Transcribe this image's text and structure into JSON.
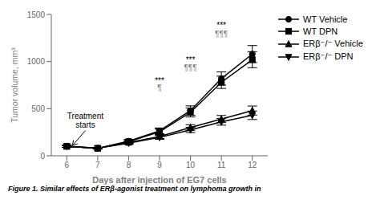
{
  "chart_data": {
    "type": "line",
    "xlabel": "Days after injection of EG7 cells",
    "ylabel": "Tumor volume, mm³",
    "caption": "Figure 1. Similar effects of ERβ-agonist treatment on lymphoma growth in",
    "x": [
      6,
      7,
      8,
      9,
      10,
      11,
      12
    ],
    "series": [
      {
        "name": "WT Vehicle",
        "color": "#000000",
        "marker": "circle",
        "values": [
          100,
          80,
          155,
          265,
          480,
          820,
          1080
        ],
        "error": [
          10,
          8,
          18,
          30,
          50,
          70,
          90
        ]
      },
      {
        "name": "WT DPN",
        "color": "#000000",
        "marker": "square",
        "values": [
          100,
          80,
          150,
          255,
          460,
          780,
          1020
        ],
        "error": [
          10,
          8,
          18,
          28,
          48,
          65,
          85
        ]
      },
      {
        "name": "ERβ⁻/⁻ Vehicle",
        "color": "#000000",
        "marker": "triangle-up",
        "values": [
          100,
          80,
          140,
          205,
          300,
          390,
          480
        ],
        "error": [
          10,
          8,
          15,
          22,
          30,
          38,
          48
        ]
      },
      {
        "name": "ERβ⁻/⁻ DPN",
        "color": "#000000",
        "marker": "triangle-down",
        "values": [
          100,
          80,
          135,
          195,
          275,
          360,
          430
        ],
        "error": [
          10,
          8,
          14,
          20,
          28,
          35,
          45
        ]
      }
    ],
    "xlim": [
      5.5,
      12.5
    ],
    "xticks": [
      6,
      7,
      8,
      9,
      10,
      11,
      12
    ],
    "ylim": [
      0,
      1500
    ],
    "yticks": [
      0,
      500,
      1000,
      1500
    ],
    "grid": false,
    "legend": "upper right",
    "annotations": [
      {
        "text": "***",
        "x": 9,
        "y": 760,
        "color": "#000000"
      },
      {
        "text": "¶",
        "x": 9,
        "y": 680,
        "color": "gray"
      },
      {
        "text": "***",
        "x": 10,
        "y": 980,
        "color": "#000000"
      },
      {
        "text": "¶¶¶",
        "x": 10,
        "y": 895,
        "color": "gray"
      },
      {
        "text": "***",
        "x": 11,
        "y": 1350,
        "color": "#000000"
      },
      {
        "text": "¶¶¶",
        "x": 11,
        "y": 1255,
        "color": "gray"
      }
    ],
    "arrow_annotation": {
      "text": "Treatment\nstarts",
      "x": 6.6,
      "y": 480,
      "arrow_x": 6.15,
      "arrow_y": 95,
      "color": "#000000"
    }
  }
}
